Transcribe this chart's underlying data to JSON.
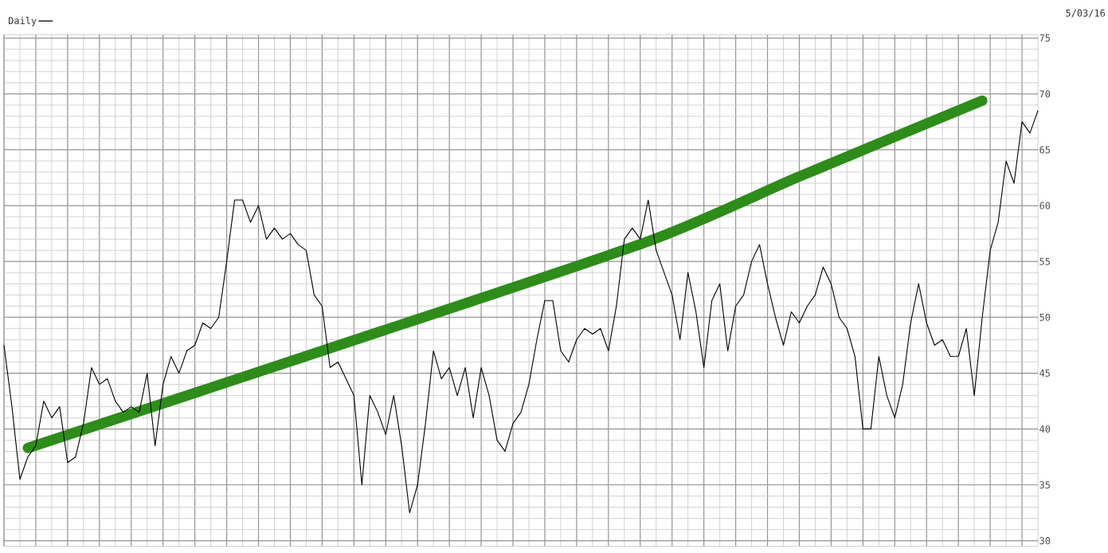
{
  "chart_data": {
    "type": "line",
    "categories": [
      null,
      null,
      null,
      null,
      null,
      null,
      null,
      null,
      null,
      null,
      null,
      null,
      null,
      null,
      null,
      null,
      null,
      null,
      null,
      null,
      null,
      null,
      null,
      null,
      null,
      null,
      null,
      null,
      null,
      null,
      null,
      null,
      null,
      null,
      null,
      null,
      null,
      null,
      null,
      null,
      null,
      null,
      null,
      null,
      null,
      null,
      null,
      null,
      null,
      null,
      null,
      null,
      null,
      null,
      null,
      null,
      null,
      null,
      null,
      null,
      null,
      null,
      null,
      null,
      null,
      null,
      null,
      null,
      null,
      null,
      null,
      null,
      null,
      null,
      null,
      null,
      null,
      null,
      null,
      null,
      null,
      null,
      null,
      null,
      null,
      null,
      null,
      null,
      null,
      null,
      null,
      null,
      null,
      null,
      null,
      null,
      null,
      null,
      null,
      null,
      null,
      null,
      null,
      null,
      null,
      null,
      null,
      null,
      null,
      null,
      null,
      null,
      null,
      null,
      null,
      null,
      null,
      null,
      null,
      null,
      null,
      null,
      null,
      null,
      null,
      null,
      null,
      null,
      null,
      null,
      null
    ],
    "series": [
      {
        "color": "#2e8c1a",
        "values": [
          null,
          null,
          null,
          38.3,
          null,
          null,
          null,
          null,
          null,
          null,
          null,
          null,
          null,
          null,
          null,
          null,
          null,
          null,
          null,
          null,
          null,
          null,
          null,
          null,
          null,
          null,
          null,
          null,
          null,
          null,
          null,
          null,
          null,
          null,
          null,
          null,
          null,
          null,
          null,
          null,
          47,
          null,
          null,
          null,
          null,
          null,
          null,
          null,
          null,
          null,
          null,
          null,
          null,
          null,
          null,
          null,
          null,
          null,
          null,
          null,
          null,
          null,
          null,
          null,
          null,
          null,
          null,
          null,
          null,
          null,
          null,
          null,
          null,
          null,
          null,
          null,
          null,
          null,
          null,
          null,
          null,
          56.8,
          null,
          null,
          null,
          null,
          null,
          null,
          null,
          null,
          null,
          null,
          null,
          null,
          null,
          null,
          null,
          null,
          null,
          null,
          62.6,
          null,
          null,
          null,
          null,
          null,
          null,
          null,
          null,
          null,
          null,
          null,
          null,
          null,
          null,
          null,
          null,
          null,
          null,
          null,
          null,
          null,
          null,
          69.4,
          null,
          null,
          null,
          null,
          null,
          null,
          null
        ]
      },
      {
        "name": "Daily",
        "color": "#000000",
        "values": [
          47.5,
          42,
          35.5,
          37.5,
          38.5,
          42.5,
          41,
          42,
          37,
          37.5,
          40.5,
          45.5,
          44,
          44.5,
          42.5,
          41.5,
          42,
          41.5,
          45,
          38.5,
          44,
          46.5,
          45,
          47,
          47.5,
          49.5,
          49,
          50,
          55,
          60.5,
          60.5,
          58.5,
          60,
          57,
          58,
          57,
          57.5,
          56.5,
          56,
          52,
          51,
          45.5,
          46,
          44.5,
          43,
          35,
          43,
          41.5,
          39.5,
          43,
          38.5,
          32.5,
          35,
          40.5,
          47,
          44.5,
          45.5,
          43,
          45.5,
          41,
          45.5,
          43,
          39,
          38,
          40.5,
          41.5,
          44,
          48,
          51.5,
          51.5,
          47,
          46,
          48,
          49,
          48.5,
          49,
          47,
          51,
          57,
          58,
          57,
          60.5,
          56,
          54,
          52,
          48,
          54,
          50.5,
          45.5,
          51.5,
          53,
          47,
          51,
          52,
          55,
          56.5,
          53,
          50,
          47.5,
          50.5,
          49.5,
          51,
          52,
          54.5,
          53,
          50,
          49,
          46.5,
          40,
          40,
          46.5,
          43,
          41,
          44,
          49.5,
          53,
          49.5,
          47.5,
          48,
          46.5,
          46.5,
          49,
          43,
          50,
          56,
          58.5,
          64,
          62,
          67.5,
          66.5,
          68.5
        ]
      }
    ],
    "annotations": [
      "5/03/16"
    ],
    "ylim": [
      29.5,
      75.3
    ],
    "yticks": [
      30,
      35,
      40,
      45,
      50,
      55,
      60,
      65,
      70,
      75
    ],
    "grid": true,
    "legend": "top left",
    "tick_labels": "y",
    "marker": "none",
    "line_style": "solid"
  }
}
